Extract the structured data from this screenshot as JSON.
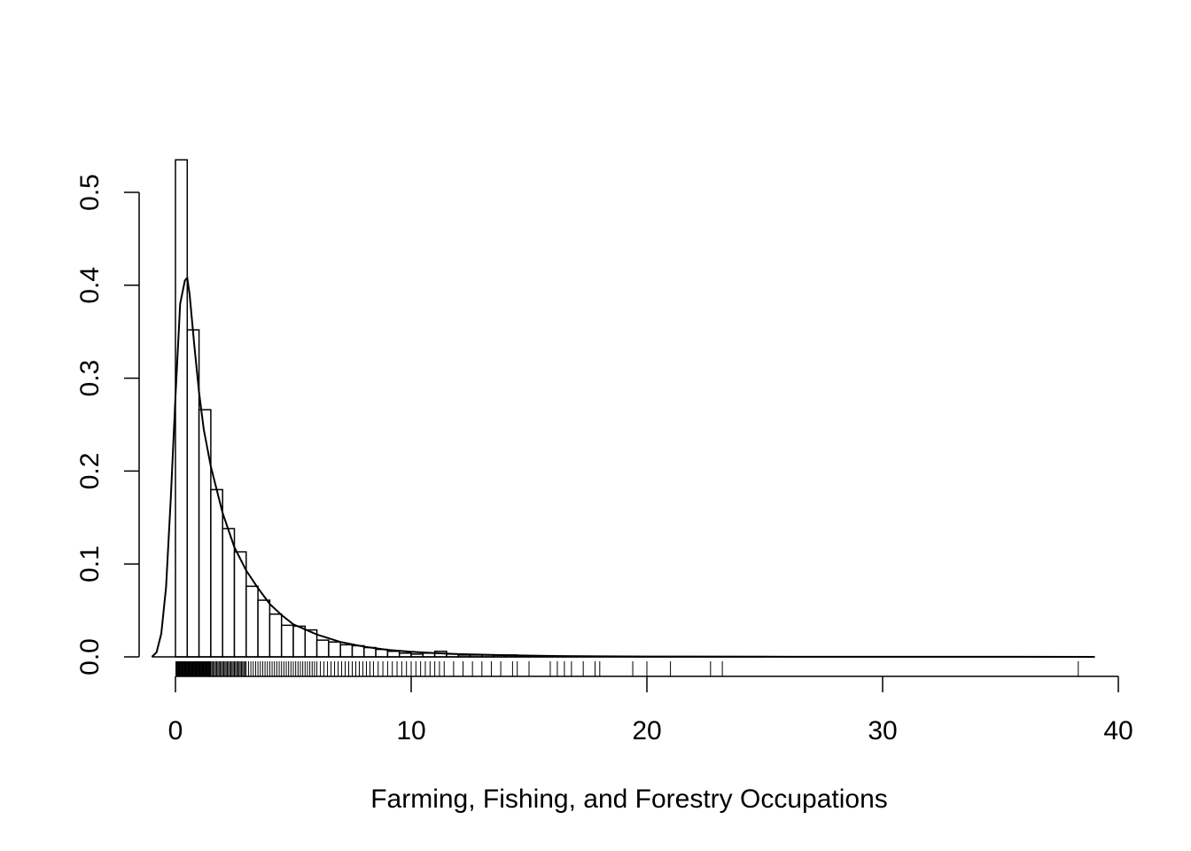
{
  "chart_data": {
    "type": "bar",
    "title": "",
    "xlabel": "Farming, Fishing, and Forestry Occupations",
    "ylabel": "",
    "xlim": [
      0,
      40
    ],
    "ylim": [
      0,
      0.5
    ],
    "x_ticks": [
      0,
      10,
      20,
      30,
      40
    ],
    "x_tick_labels": [
      "0",
      "10",
      "20",
      "30",
      "40"
    ],
    "y_ticks": [
      0.0,
      0.1,
      0.2,
      0.3,
      0.4,
      0.5
    ],
    "y_tick_labels": [
      "0.0",
      "0.1",
      "0.2",
      "0.3",
      "0.4",
      "0.5"
    ],
    "grid": false,
    "legend": "none",
    "histogram": {
      "bin_width": 0.5,
      "bin_start": 0,
      "density": [
        0.535,
        0.352,
        0.266,
        0.18,
        0.138,
        0.113,
        0.076,
        0.061,
        0.046,
        0.034,
        0.033,
        0.029,
        0.018,
        0.016,
        0.013,
        0.012,
        0.01,
        0.008,
        0.006,
        0.004,
        0.003,
        0.004,
        0.006,
        0.003,
        0.002,
        0.002,
        0.002,
        0.002,
        0.002,
        0.001,
        0.001,
        0.0005,
        0.0005,
        0.0004,
        0.0003,
        0.0003,
        0.0003,
        0.0002,
        0.0002,
        0.0002,
        0.0001,
        0.0001,
        0.0001,
        0.0001,
        0.0001,
        0.0001,
        0.0001,
        0.0001,
        0.0001,
        0.0001
      ]
    },
    "density_curve": {
      "x": [
        -1.0,
        -0.8,
        -0.6,
        -0.4,
        -0.2,
        0.0,
        0.2,
        0.4,
        0.5,
        0.6,
        0.8,
        1.0,
        1.2,
        1.5,
        2.0,
        2.5,
        3.0,
        3.5,
        4.0,
        4.5,
        5.0,
        6.0,
        7.0,
        8.0,
        9.0,
        10.0,
        11.0,
        12.0,
        14.0,
        16.0,
        18.0,
        20.0,
        25.0,
        30.0,
        35.0,
        39.0
      ],
      "y": [
        0.0,
        0.005,
        0.025,
        0.075,
        0.17,
        0.28,
        0.38,
        0.405,
        0.408,
        0.39,
        0.335,
        0.285,
        0.245,
        0.205,
        0.155,
        0.118,
        0.093,
        0.074,
        0.057,
        0.045,
        0.035,
        0.024,
        0.016,
        0.011,
        0.0075,
        0.0055,
        0.004,
        0.003,
        0.0018,
        0.001,
        0.0006,
        0.0004,
        0.0002,
        0.0001,
        5e-05,
        0.0
      ]
    },
    "rug": [
      0.02,
      0.05,
      0.08,
      0.1,
      0.12,
      0.15,
      0.18,
      0.2,
      0.22,
      0.25,
      0.28,
      0.3,
      0.33,
      0.35,
      0.38,
      0.4,
      0.43,
      0.45,
      0.48,
      0.5,
      0.53,
      0.55,
      0.58,
      0.6,
      0.63,
      0.65,
      0.68,
      0.7,
      0.73,
      0.75,
      0.78,
      0.8,
      0.83,
      0.85,
      0.88,
      0.9,
      0.93,
      0.95,
      0.98,
      1.0,
      1.03,
      1.05,
      1.08,
      1.1,
      1.13,
      1.15,
      1.18,
      1.2,
      1.23,
      1.25,
      1.28,
      1.3,
      1.33,
      1.35,
      1.38,
      1.4,
      1.43,
      1.45,
      1.48,
      1.5,
      1.55,
      1.6,
      1.65,
      1.7,
      1.75,
      1.8,
      1.85,
      1.9,
      1.95,
      2.0,
      2.05,
      2.1,
      2.15,
      2.2,
      2.25,
      2.3,
      2.35,
      2.4,
      2.45,
      2.5,
      2.55,
      2.6,
      2.65,
      2.7,
      2.75,
      2.8,
      2.85,
      2.9,
      2.95,
      3.0,
      3.1,
      3.2,
      3.3,
      3.4,
      3.5,
      3.6,
      3.7,
      3.8,
      3.9,
      4.0,
      4.1,
      4.2,
      4.3,
      4.4,
      4.5,
      4.6,
      4.7,
      4.8,
      4.9,
      5.0,
      5.1,
      5.2,
      5.3,
      5.4,
      5.5,
      5.6,
      5.7,
      5.8,
      5.9,
      6.0,
      6.15,
      6.3,
      6.45,
      6.6,
      6.75,
      6.9,
      7.05,
      7.2,
      7.35,
      7.5,
      7.65,
      7.8,
      7.95,
      8.1,
      8.25,
      8.4,
      8.6,
      8.8,
      9.0,
      9.2,
      9.4,
      9.6,
      9.8,
      10.0,
      10.2,
      10.4,
      10.6,
      10.8,
      11.0,
      11.2,
      11.4,
      11.8,
      12.2,
      12.6,
      13.0,
      13.4,
      13.8,
      14.3,
      14.5,
      15.0,
      15.9,
      16.2,
      16.5,
      16.8,
      17.3,
      17.8,
      18.0,
      19.4,
      20.0,
      21.0,
      22.7,
      23.2,
      38.3
    ]
  }
}
